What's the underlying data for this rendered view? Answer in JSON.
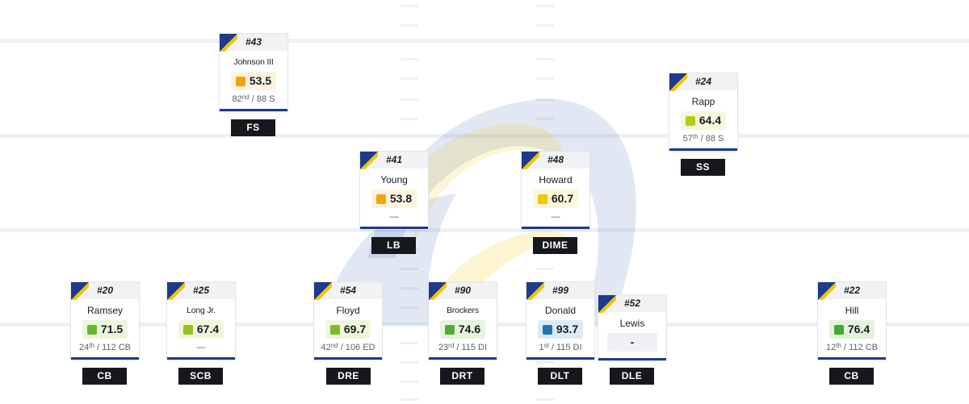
{
  "colors": {
    "grade_orange": "#f5a30a",
    "grade_yellow": "#f2c500",
    "grade_lime": "#b5cb1a",
    "grade_green": "#6ab52a",
    "grade_deep_green": "#3ea935",
    "grade_blue": "#1b75bb",
    "card_accent": "#1e3a8a",
    "card_corner": "#f2c500",
    "pos_label_bg": "#16181d"
  },
  "players": [
    {
      "number": "#43",
      "name": "Johnson III",
      "grade": "53.5",
      "rank": "82",
      "rank_suffix": "nd",
      "rank_rest": " / 88 S",
      "pos": "FS"
    },
    {
      "number": "#24",
      "name": "Rapp",
      "grade": "64.4",
      "rank": "57",
      "rank_suffix": "th",
      "rank_rest": " / 88 S",
      "pos": "SS"
    },
    {
      "number": "#41",
      "name": "Young",
      "grade": "53.8",
      "rank": "—",
      "pos": "LB"
    },
    {
      "number": "#48",
      "name": "Howard",
      "grade": "60.7",
      "rank": "—",
      "pos": "DIME"
    },
    {
      "number": "#20",
      "name": "Ramsey",
      "grade": "71.5",
      "rank": "24",
      "rank_suffix": "th",
      "rank_rest": " / 112 CB",
      "pos": "CB"
    },
    {
      "number": "#25",
      "name": "Long Jr.",
      "grade": "67.4",
      "rank": "—",
      "pos": "SCB"
    },
    {
      "number": "#54",
      "name": "Floyd",
      "grade": "69.7",
      "rank": "42",
      "rank_suffix": "nd",
      "rank_rest": " / 106 ED",
      "pos": "DRE"
    },
    {
      "number": "#90",
      "name": "Brockers",
      "grade": "74.6",
      "rank": "23",
      "rank_suffix": "rd",
      "rank_rest": " / 115 DI",
      "pos": "DRT"
    },
    {
      "number": "#99",
      "name": "Donald",
      "grade": "93.7",
      "rank": "1",
      "rank_suffix": "st",
      "rank_rest": " / 115 DI",
      "pos": "DLT"
    },
    {
      "number": "#52",
      "name": "Lewis",
      "grade": "-",
      "pos": "DLE"
    },
    {
      "number": "#22",
      "name": "Hill",
      "grade": "76.4",
      "rank": "12",
      "rank_suffix": "th",
      "rank_rest": " / 112 CB",
      "pos": "CB"
    }
  ]
}
